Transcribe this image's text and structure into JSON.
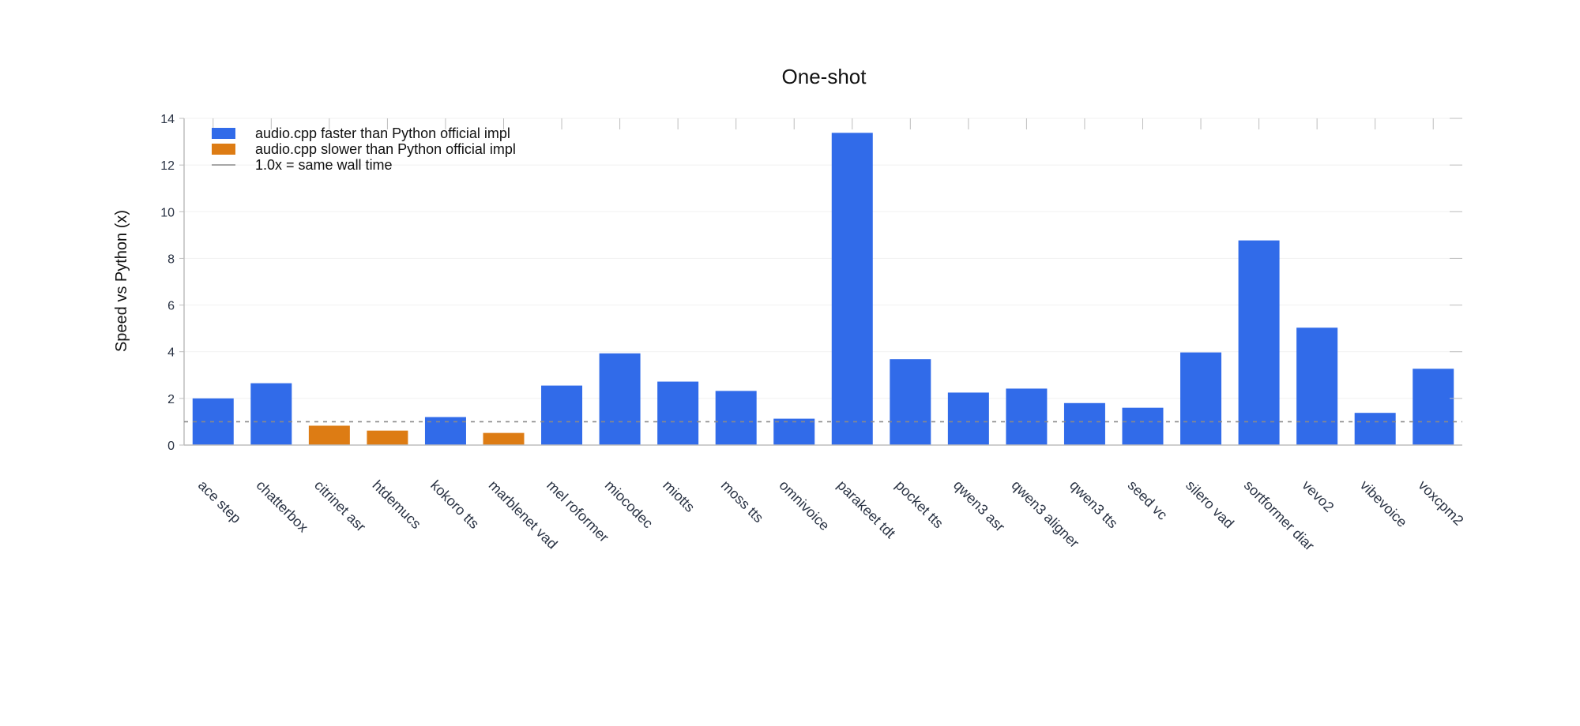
{
  "chart_data": {
    "type": "bar",
    "title": "One-shot",
    "ylabel": "Speed vs Python (x)",
    "xlabel": "",
    "ylim": [
      0,
      14
    ],
    "yticks": [
      0,
      2,
      4,
      6,
      8,
      10,
      12,
      14
    ],
    "grid": true,
    "legend_position": "top-left",
    "reference_line": {
      "value": 1.0,
      "label": "1.0x = same wall time",
      "style": "dashed",
      "color": "#8a8a8a"
    },
    "colors": {
      "faster": "#316be9",
      "slower": "#dd7c14"
    },
    "legend": [
      {
        "label": "audio.cpp faster than Python official impl",
        "kind": "faster"
      },
      {
        "label": "audio.cpp slower than Python official impl",
        "kind": "slower"
      },
      {
        "label": "1.0x = same wall time",
        "kind": "line"
      }
    ],
    "categories": [
      "ace step",
      "chatterbox",
      "citrinet asr",
      "htdemucs",
      "kokoro tts",
      "marblenet vad",
      "mel roformer",
      "miocodec",
      "miotts",
      "moss tts",
      "omnivoice",
      "parakeet tdt",
      "pocket tts",
      "qwen3 asr",
      "qwen3 aligner",
      "qwen3 tts",
      "seed vc",
      "silero vad",
      "sortformer diar",
      "vevo2",
      "vibevoice",
      "voxcpm2"
    ],
    "values": [
      2.0,
      2.65,
      0.83,
      0.62,
      1.2,
      0.52,
      2.55,
      3.93,
      2.72,
      2.32,
      1.13,
      13.38,
      3.68,
      2.25,
      2.42,
      1.8,
      1.6,
      3.97,
      8.77,
      5.03,
      1.38,
      3.27
    ]
  }
}
